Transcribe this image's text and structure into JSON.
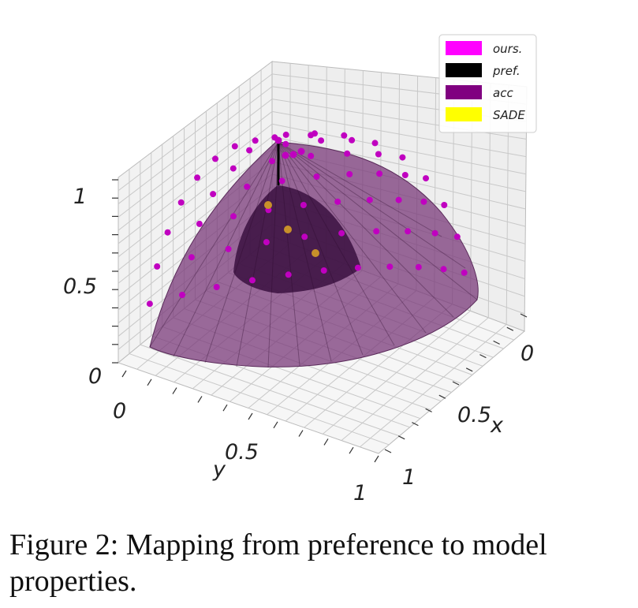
{
  "chart_data": {
    "type": "scatter",
    "projection": "3d",
    "surface": "unit-sphere octant with points",
    "x_axis": {
      "label": "x",
      "ticks": [
        "0",
        "0.5",
        "1"
      ],
      "range": [
        0,
        1
      ]
    },
    "y_axis": {
      "label": "y",
      "ticks": [
        "0",
        "0.5",
        "1"
      ],
      "range": [
        0,
        1
      ]
    },
    "z_axis": {
      "label": "",
      "ticks": [
        "0",
        "0.5",
        "1"
      ],
      "range": [
        0,
        1
      ]
    },
    "grid": true,
    "legend": {
      "placement": "top-right",
      "entries": [
        {
          "label": "ours.",
          "color": "#ff00ff"
        },
        {
          "label": "pref.",
          "color": "#000000"
        },
        {
          "label": "acc",
          "color": "#800080"
        },
        {
          "label": "SADE",
          "color": "#ffff00"
        }
      ]
    },
    "colors": {
      "surface": "#7a3a7a",
      "inner_surface": "#3a1040",
      "ours_points": "#c000c0",
      "sade_points": "#c8902a"
    }
  },
  "caption": "Figure 2: Mapping from preference to model properties."
}
